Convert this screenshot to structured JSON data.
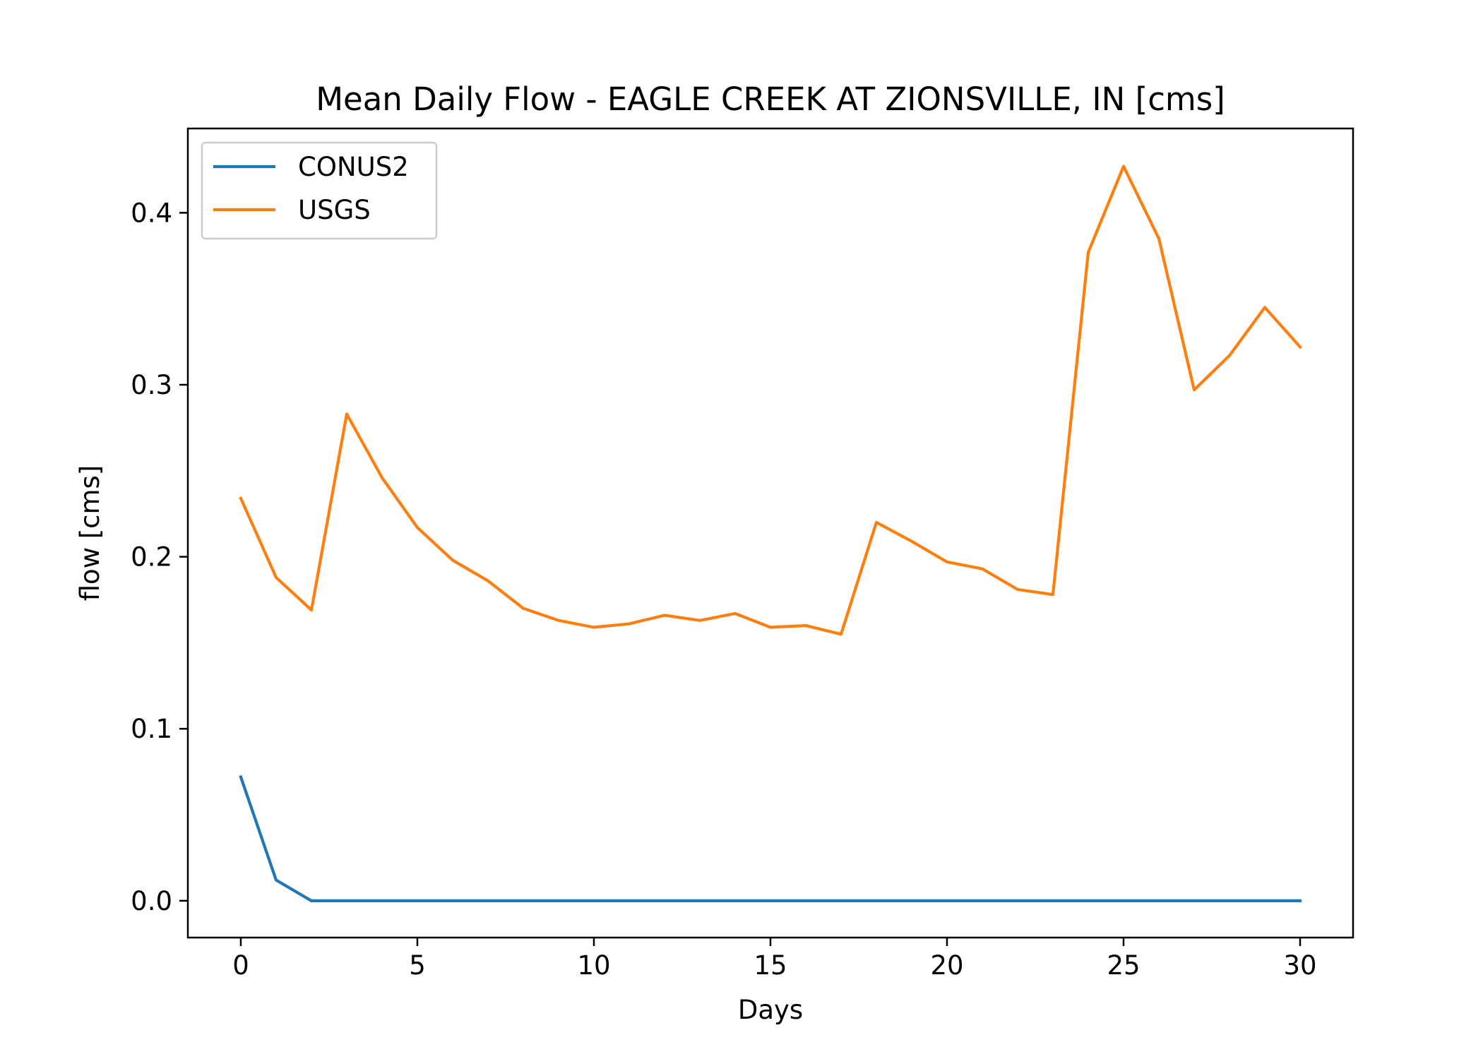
{
  "chart_data": {
    "type": "line",
    "title": "Mean Daily Flow - EAGLE CREEK AT ZIONSVILLE, IN [cms]",
    "xlabel": "Days",
    "ylabel": "flow [cms]",
    "xlim": [
      -1.5,
      31.5
    ],
    "ylim": [
      -0.0214,
      0.449
    ],
    "xticks": [
      0,
      5,
      10,
      15,
      20,
      25,
      30
    ],
    "xtick_labels": [
      "0",
      "5",
      "10",
      "15",
      "20",
      "25",
      "30"
    ],
    "yticks": [
      0.0,
      0.1,
      0.2,
      0.3,
      0.4
    ],
    "ytick_labels": [
      "0.0",
      "0.1",
      "0.2",
      "0.3",
      "0.4"
    ],
    "grid": false,
    "legend_position": "top-left",
    "x": [
      0,
      1,
      2,
      3,
      4,
      5,
      6,
      7,
      8,
      9,
      10,
      11,
      12,
      13,
      14,
      15,
      16,
      17,
      18,
      19,
      20,
      21,
      22,
      23,
      24,
      25,
      26,
      27,
      28,
      29,
      30
    ],
    "series": [
      {
        "name": "CONUS2",
        "color": "#1f77b4",
        "values": [
          0.072,
          0.012,
          0.0,
          0.0,
          0.0,
          0.0,
          0.0,
          0.0,
          0.0,
          0.0,
          0.0,
          0.0,
          0.0,
          0.0,
          0.0,
          0.0,
          0.0,
          0.0,
          0.0,
          0.0,
          0.0,
          0.0,
          0.0,
          0.0,
          0.0,
          0.0,
          0.0,
          0.0,
          0.0,
          0.0,
          0.0
        ]
      },
      {
        "name": "USGS",
        "color": "#ff7f0e",
        "values": [
          0.234,
          0.188,
          0.169,
          0.283,
          0.246,
          0.217,
          0.198,
          0.186,
          0.17,
          0.163,
          0.159,
          0.161,
          0.166,
          0.163,
          0.167,
          0.159,
          0.16,
          0.155,
          0.22,
          0.209,
          0.197,
          0.193,
          0.181,
          0.178,
          0.377,
          0.427,
          0.385,
          0.297,
          0.317,
          0.345,
          0.322
        ]
      }
    ]
  }
}
